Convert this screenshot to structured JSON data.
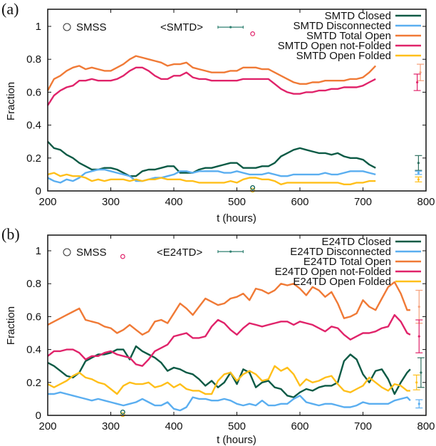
{
  "chart_data": [
    {
      "type": "line",
      "panel_label": "(a)",
      "xlabel": "t (hours)",
      "ylabel": "Fraction",
      "xlim": [
        200,
        800
      ],
      "ylim": [
        0,
        1.1
      ],
      "xticks": [
        200,
        300,
        400,
        500,
        600,
        700,
        800
      ],
      "xtick_labels": [
        "200",
        "300",
        "400",
        "500",
        "600",
        "700",
        "800"
      ],
      "yticks": [
        0,
        0.2,
        0.4,
        0.6,
        0.8,
        1
      ],
      "ytick_labels": [
        "0",
        "0.2",
        "0.4",
        "0.6",
        "0.8",
        "1"
      ],
      "legend_position": "top-right",
      "grid": false,
      "smss_label": "SMSS",
      "avg_label": "<SMTD>",
      "x": [
        200,
        210,
        220,
        230,
        240,
        250,
        260,
        270,
        280,
        290,
        300,
        310,
        320,
        330,
        340,
        350,
        360,
        370,
        380,
        390,
        400,
        410,
        420,
        430,
        440,
        450,
        460,
        470,
        480,
        490,
        500,
        510,
        520,
        530,
        540,
        550,
        560,
        570,
        580,
        590,
        600,
        610,
        620,
        630,
        640,
        650,
        660,
        670,
        680,
        690,
        700,
        710,
        720
      ],
      "series": [
        {
          "name": "SMTD Closed",
          "color": "#0b5a45",
          "values": [
            0.3,
            0.26,
            0.25,
            0.22,
            0.2,
            0.17,
            0.15,
            0.13,
            0.13,
            0.14,
            0.14,
            0.13,
            0.11,
            0.09,
            0.09,
            0.12,
            0.13,
            0.13,
            0.14,
            0.15,
            0.15,
            0.11,
            0.11,
            0.11,
            0.13,
            0.14,
            0.14,
            0.15,
            0.16,
            0.17,
            0.17,
            0.14,
            0.14,
            0.14,
            0.15,
            0.15,
            0.17,
            0.21,
            0.23,
            0.25,
            0.26,
            0.25,
            0.24,
            0.23,
            0.23,
            0.22,
            0.23,
            0.21,
            0.2,
            0.2,
            0.19,
            0.16,
            0.14
          ]
        },
        {
          "name": "SMTD Disconnected",
          "color": "#5aaef0",
          "values": [
            0.08,
            0.06,
            0.05,
            0.07,
            0.06,
            0.08,
            0.11,
            0.12,
            0.13,
            0.13,
            0.12,
            0.11,
            0.1,
            0.09,
            0.06,
            0.06,
            0.07,
            0.08,
            0.08,
            0.09,
            0.1,
            0.12,
            0.12,
            0.11,
            0.12,
            0.12,
            0.12,
            0.12,
            0.11,
            0.11,
            0.12,
            0.11,
            0.1,
            0.1,
            0.1,
            0.11,
            0.1,
            0.09,
            0.09,
            0.1,
            0.1,
            0.1,
            0.1,
            0.1,
            0.11,
            0.1,
            0.1,
            0.11,
            0.12,
            0.12,
            0.12,
            0.11,
            0.1
          ]
        },
        {
          "name": "SMTD Total Open",
          "color": "#f07a36",
          "values": [
            0.61,
            0.68,
            0.7,
            0.73,
            0.75,
            0.76,
            0.74,
            0.75,
            0.74,
            0.73,
            0.73,
            0.75,
            0.77,
            0.8,
            0.82,
            0.81,
            0.8,
            0.79,
            0.78,
            0.76,
            0.77,
            0.77,
            0.78,
            0.75,
            0.74,
            0.73,
            0.72,
            0.72,
            0.72,
            0.73,
            0.73,
            0.75,
            0.75,
            0.75,
            0.74,
            0.74,
            0.72,
            0.7,
            0.68,
            0.66,
            0.65,
            0.65,
            0.66,
            0.66,
            0.67,
            0.67,
            0.67,
            0.67,
            0.68,
            0.68,
            0.69,
            0.72,
            0.76
          ]
        },
        {
          "name": "SMTD Open not-Folded",
          "color": "#e0236a",
          "values": [
            0.52,
            0.58,
            0.61,
            0.63,
            0.64,
            0.67,
            0.67,
            0.68,
            0.67,
            0.67,
            0.67,
            0.68,
            0.7,
            0.73,
            0.75,
            0.75,
            0.73,
            0.7,
            0.68,
            0.68,
            0.7,
            0.7,
            0.72,
            0.69,
            0.68,
            0.68,
            0.67,
            0.67,
            0.67,
            0.67,
            0.67,
            0.68,
            0.68,
            0.68,
            0.68,
            0.68,
            0.65,
            0.62,
            0.6,
            0.59,
            0.59,
            0.6,
            0.6,
            0.61,
            0.61,
            0.62,
            0.62,
            0.63,
            0.63,
            0.63,
            0.64,
            0.66,
            0.68
          ]
        },
        {
          "name": "SMTD Open Folded",
          "color": "#ffbf1a",
          "values": [
            0.1,
            0.11,
            0.09,
            0.1,
            0.09,
            0.09,
            0.08,
            0.06,
            0.07,
            0.06,
            0.07,
            0.07,
            0.07,
            0.06,
            0.07,
            0.06,
            0.07,
            0.07,
            0.08,
            0.07,
            0.07,
            0.07,
            0.06,
            0.06,
            0.05,
            0.05,
            0.05,
            0.05,
            0.05,
            0.06,
            0.05,
            0.07,
            0.08,
            0.08,
            0.07,
            0.07,
            0.06,
            0.04,
            0.05,
            0.05,
            0.05,
            0.05,
            0.05,
            0.05,
            0.05,
            0.05,
            0.05,
            0.04,
            0.04,
            0.05,
            0.05,
            0.06,
            0.06
          ]
        }
      ],
      "smss_points": [
        {
          "series": "SMTD Open not-Folded",
          "t": 525,
          "value": 0.955,
          "color": "#e0236a"
        },
        {
          "series": "SMTD Disconnected",
          "t": 525,
          "value": 0.02,
          "color": "#5aaef0"
        },
        {
          "series": "SMTD Open Folded",
          "t": 525,
          "value": 0.005,
          "color": "#ffbf1a"
        },
        {
          "series": "SMTD Closed",
          "t": 525,
          "value": 0.02,
          "color": "#0b5a45"
        }
      ],
      "avg_points": [
        {
          "series": "SMTD Total Open",
          "t": 791,
          "value": 0.72,
          "err": 0.05,
          "color": "#f5a07a"
        },
        {
          "series": "SMTD Open not-Folded",
          "t": 786,
          "value": 0.66,
          "err": 0.05,
          "color": "#e0236a"
        },
        {
          "series": "SMTD Closed",
          "t": 788,
          "value": 0.17,
          "err": 0.045,
          "color": "#2f7060"
        },
        {
          "series": "SMTD Disconnected",
          "t": 788,
          "value": 0.11,
          "err": 0.01,
          "color": "#5aaef0"
        },
        {
          "series": "SMTD Open Folded",
          "t": 788,
          "value": 0.07,
          "err": 0.015,
          "color": "#ffbf1a"
        }
      ],
      "avg_legend_sample": {
        "value": 0.995,
        "t": 490,
        "err_t": 20,
        "color": "#2f8070"
      }
    },
    {
      "type": "line",
      "panel_label": "(b)",
      "xlabel": "t (hours)",
      "ylabel": "Fraction",
      "xlim": [
        200,
        800
      ],
      "ylim": [
        0,
        1.1
      ],
      "xticks": [
        200,
        300,
        400,
        500,
        600,
        700,
        800
      ],
      "xtick_labels": [
        "200",
        "300",
        "400",
        "500",
        "600",
        "700",
        "800"
      ],
      "yticks": [
        0,
        0.2,
        0.4,
        0.6,
        0.8,
        1
      ],
      "ytick_labels": [
        "0",
        "0.2",
        "0.4",
        "0.6",
        "0.8",
        "1"
      ],
      "legend_position": "top-right",
      "grid": false,
      "smss_label": "SMSS",
      "avg_label": "<E24TD>",
      "x": [
        200,
        210,
        220,
        230,
        240,
        250,
        260,
        270,
        280,
        290,
        300,
        310,
        320,
        330,
        340,
        350,
        360,
        370,
        380,
        390,
        400,
        410,
        420,
        430,
        440,
        450,
        460,
        470,
        480,
        490,
        500,
        510,
        520,
        530,
        540,
        550,
        560,
        570,
        580,
        590,
        600,
        610,
        620,
        630,
        640,
        650,
        660,
        670,
        680,
        690,
        700,
        710,
        720,
        730,
        740,
        750,
        760,
        770,
        775
      ],
      "series": [
        {
          "name": "E24TD Closed",
          "color": "#0b5a45",
          "values": [
            0.32,
            0.3,
            0.27,
            0.24,
            0.23,
            0.26,
            0.33,
            0.35,
            0.37,
            0.37,
            0.38,
            0.4,
            0.4,
            0.34,
            0.42,
            0.39,
            0.37,
            0.35,
            0.32,
            0.27,
            0.29,
            0.28,
            0.26,
            0.25,
            0.22,
            0.18,
            0.21,
            0.17,
            0.2,
            0.26,
            0.19,
            0.28,
            0.26,
            0.17,
            0.2,
            0.21,
            0.17,
            0.16,
            0.12,
            0.11,
            0.14,
            0.16,
            0.15,
            0.17,
            0.18,
            0.18,
            0.2,
            0.33,
            0.37,
            0.34,
            0.25,
            0.2,
            0.27,
            0.28,
            0.22,
            0.13,
            0.2,
            0.26,
            0.28
          ]
        },
        {
          "name": "E24TD Disconnected",
          "color": "#5aaef0",
          "values": [
            0.13,
            0.13,
            0.14,
            0.13,
            0.12,
            0.11,
            0.1,
            0.09,
            0.1,
            0.09,
            0.08,
            0.07,
            0.06,
            0.07,
            0.08,
            0.1,
            0.08,
            0.06,
            0.06,
            0.08,
            0.04,
            0.03,
            0.05,
            0.11,
            0.1,
            0.1,
            0.09,
            0.09,
            0.1,
            0.09,
            0.07,
            0.06,
            0.07,
            0.06,
            0.09,
            0.06,
            0.06,
            0.07,
            0.07,
            0.1,
            0.12,
            0.08,
            0.07,
            0.06,
            0.07,
            0.07,
            0.06,
            0.05,
            0.05,
            0.06,
            0.08,
            0.07,
            0.07,
            0.07,
            0.07,
            0.09,
            0.1,
            0.11,
            0.09
          ]
        },
        {
          "name": "E24TD Open Total",
          "display_name": "E24TD Total Open",
          "color": "#f07a36",
          "values": [
            0.55,
            0.57,
            0.59,
            0.61,
            0.63,
            0.65,
            0.58,
            0.57,
            0.56,
            0.54,
            0.53,
            0.5,
            0.52,
            0.55,
            0.52,
            0.49,
            0.51,
            0.57,
            0.58,
            0.56,
            0.62,
            0.68,
            0.65,
            0.61,
            0.66,
            0.71,
            0.69,
            0.67,
            0.68,
            0.71,
            0.72,
            0.74,
            0.7,
            0.77,
            0.76,
            0.74,
            0.76,
            0.8,
            0.79,
            0.8,
            0.77,
            0.73,
            0.78,
            0.76,
            0.72,
            0.75,
            0.68,
            0.59,
            0.6,
            0.62,
            0.7,
            0.66,
            0.64,
            0.71,
            0.78,
            0.81,
            0.74,
            0.64,
            0.64
          ]
        },
        {
          "name": "E24TD Open not-Folded",
          "color": "#e0236a",
          "values": [
            0.36,
            0.39,
            0.39,
            0.4,
            0.4,
            0.38,
            0.34,
            0.36,
            0.36,
            0.38,
            0.39,
            0.37,
            0.36,
            0.35,
            0.31,
            0.3,
            0.34,
            0.39,
            0.41,
            0.43,
            0.48,
            0.49,
            0.5,
            0.47,
            0.47,
            0.48,
            0.54,
            0.58,
            0.56,
            0.52,
            0.49,
            0.53,
            0.56,
            0.55,
            0.54,
            0.55,
            0.56,
            0.57,
            0.57,
            0.55,
            0.57,
            0.56,
            0.55,
            0.53,
            0.51,
            0.54,
            0.53,
            0.49,
            0.46,
            0.48,
            0.5,
            0.5,
            0.51,
            0.53,
            0.54,
            0.61,
            0.57,
            0.5,
            0.49
          ]
        },
        {
          "name": "E24TD Open Folded",
          "color": "#ffbf1a",
          "values": [
            0.19,
            0.17,
            0.19,
            0.21,
            0.24,
            0.26,
            0.23,
            0.22,
            0.2,
            0.19,
            0.16,
            0.13,
            0.18,
            0.2,
            0.19,
            0.19,
            0.2,
            0.17,
            0.18,
            0.2,
            0.17,
            0.19,
            0.16,
            0.15,
            0.15,
            0.13,
            0.13,
            0.21,
            0.25,
            0.26,
            0.21,
            0.25,
            0.27,
            0.25,
            0.21,
            0.22,
            0.3,
            0.27,
            0.29,
            0.25,
            0.18,
            0.22,
            0.2,
            0.21,
            0.23,
            0.24,
            0.19,
            0.15,
            0.14,
            0.16,
            0.18,
            0.23,
            0.2,
            0.17,
            0.15,
            0.19,
            0.18,
            0.15,
            0.15
          ]
        }
      ],
      "smss_points": [
        {
          "series": "E24TD Open not-Folded",
          "t": 319,
          "value": 0.965,
          "color": "#e0236a"
        },
        {
          "series": "E24TD Disconnected",
          "t": 319,
          "value": 0.02,
          "color": "#5aaef0"
        },
        {
          "series": "E24TD Open Folded",
          "t": 319,
          "value": 0.005,
          "color": "#ffbf1a"
        },
        {
          "series": "E24TD Closed",
          "t": 319,
          "value": 0.02,
          "color": "#0b5a45"
        }
      ],
      "avg_points": [
        {
          "series": "E24TD Total Open",
          "t": 789,
          "value": 0.66,
          "err": 0.1,
          "color": "#f5a07a"
        },
        {
          "series": "E24TD Open not-Folded",
          "t": 789,
          "value": 0.48,
          "err": 0.1,
          "color": "#e0236a"
        },
        {
          "series": "E24TD Closed",
          "t": 792,
          "value": 0.26,
          "err": 0.09,
          "color": "#2f7060"
        },
        {
          "series": "E24TD Open Folded",
          "t": 785,
          "value": 0.2,
          "err": 0.045,
          "color": "#ffbf1a"
        },
        {
          "series": "E24TD Disconnected",
          "t": 789,
          "value": 0.07,
          "err": 0.025,
          "color": "#5aaef0"
        }
      ],
      "avg_legend_sample": {
        "value": 0.995,
        "t": 490,
        "err_t": 20,
        "color": "#2f8070"
      }
    }
  ]
}
